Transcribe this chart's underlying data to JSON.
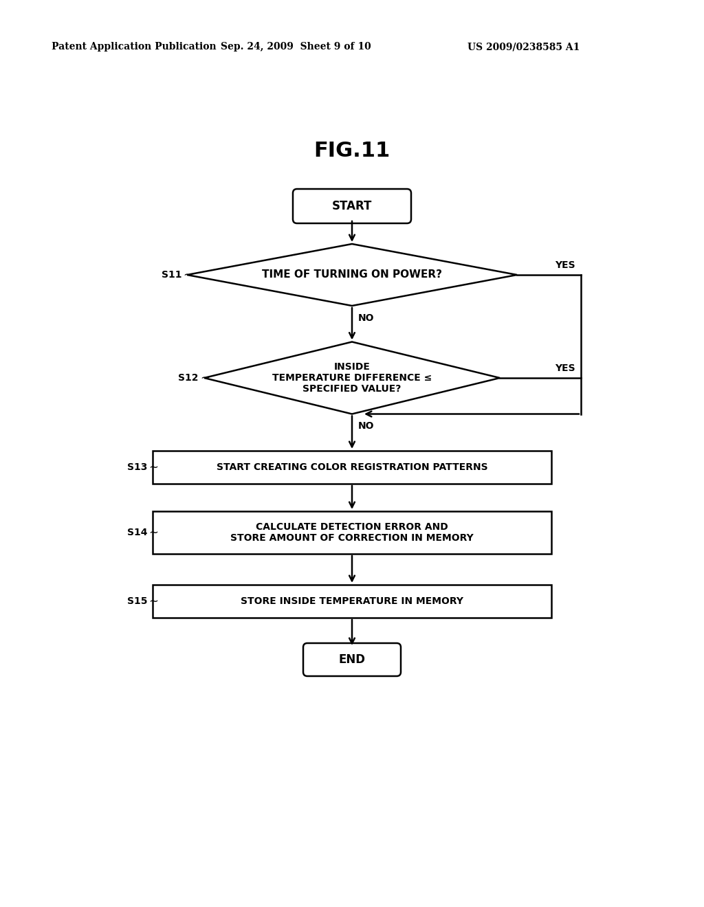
{
  "title": "FIG.11",
  "header_left": "Patent Application Publication",
  "header_center": "Sep. 24, 2009  Sheet 9 of 10",
  "header_right": "US 2009/0238585 A1",
  "bg_color": "#ffffff",
  "figsize": [
    10.24,
    13.2
  ],
  "dpi": 100,
  "nodes": {
    "start_label": "START",
    "d1_label": "TIME OF TURNING ON POWER?",
    "d2_label": "INSIDE\nTEMPERATURE DIFFERENCE ≤\nSPECIFIED VALUE?",
    "s13_label": "START CREATING COLOR REGISTRATION PATTERNS",
    "s14_label": "CALCULATE DETECTION ERROR AND\nSTORE AMOUNT OF CORRECTION IN MEMORY",
    "s15_label": "STORE INSIDE TEMPERATURE IN MEMORY",
    "end_label": "END"
  }
}
